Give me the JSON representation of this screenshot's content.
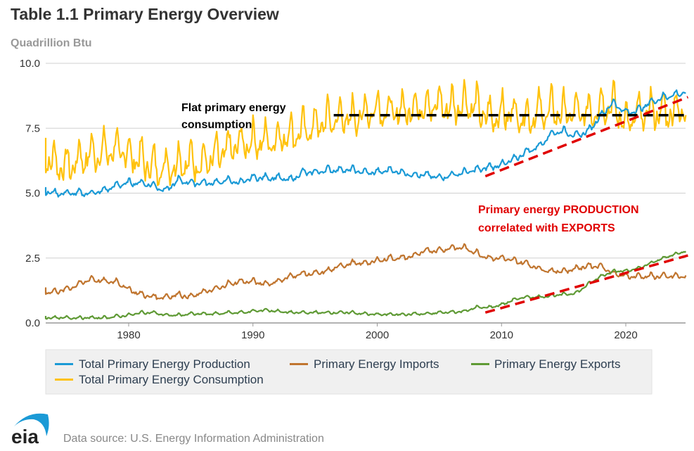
{
  "chart_data": {
    "type": "line",
    "title": "Table 1.1 Primary Energy Overview",
    "ylabel": "Quadrillion Btu",
    "xlabel": "",
    "ylim": [
      0,
      10
    ],
    "xlim": [
      1973,
      2024.9
    ],
    "yticks": [
      "0.0",
      "2.5",
      "5.0",
      "7.5",
      "10.0"
    ],
    "ytick_values": [
      0,
      2.5,
      5,
      7.5,
      10
    ],
    "xticks": [
      "1980",
      "1990",
      "2000",
      "2010",
      "2020"
    ],
    "xtick_values": [
      1980,
      1990,
      2000,
      2010,
      2020
    ],
    "grid": "horizontal",
    "legend_position": "bottom",
    "x": [
      1973,
      1974,
      1975,
      1976,
      1977,
      1978,
      1979,
      1980,
      1981,
      1982,
      1983,
      1984,
      1985,
      1986,
      1987,
      1988,
      1989,
      1990,
      1991,
      1992,
      1993,
      1994,
      1995,
      1996,
      1997,
      1998,
      1999,
      2000,
      2001,
      2002,
      2003,
      2004,
      2005,
      2006,
      2007,
      2008,
      2009,
      2010,
      2011,
      2012,
      2013,
      2014,
      2015,
      2016,
      2017,
      2018,
      2019,
      2020,
      2021,
      2022,
      2023,
      2024
    ],
    "series": [
      {
        "name": "Total Primary Energy Production",
        "color": "#1b9ad6",
        "seasonal_amplitude": 0.12,
        "values": [
          5.1,
          5.0,
          5.0,
          5.0,
          5.0,
          5.1,
          5.3,
          5.4,
          5.4,
          5.3,
          5.1,
          5.5,
          5.4,
          5.4,
          5.4,
          5.5,
          5.4,
          5.6,
          5.6,
          5.6,
          5.5,
          5.8,
          5.8,
          5.9,
          5.9,
          5.9,
          5.8,
          5.8,
          5.9,
          5.8,
          5.7,
          5.7,
          5.6,
          5.7,
          5.8,
          5.9,
          6.0,
          6.1,
          6.3,
          6.6,
          6.8,
          7.3,
          7.4,
          7.2,
          7.4,
          8.0,
          8.5,
          8.1,
          8.2,
          8.5,
          8.7,
          8.8
        ]
      },
      {
        "name": "Primary Energy Imports",
        "color": "#c0752f",
        "seasonal_amplitude": 0.1,
        "values": [
          1.2,
          1.2,
          1.3,
          1.5,
          1.7,
          1.6,
          1.6,
          1.3,
          1.1,
          1.0,
          1.0,
          1.1,
          1.0,
          1.2,
          1.3,
          1.5,
          1.6,
          1.6,
          1.5,
          1.6,
          1.8,
          1.9,
          1.9,
          2.0,
          2.2,
          2.3,
          2.3,
          2.4,
          2.5,
          2.5,
          2.6,
          2.8,
          2.8,
          2.9,
          2.9,
          2.7,
          2.5,
          2.5,
          2.4,
          2.3,
          2.1,
          2.0,
          2.0,
          2.1,
          2.2,
          2.2,
          1.9,
          1.8,
          1.8,
          1.8,
          1.8,
          1.8
        ]
      },
      {
        "name": "Primary Energy Exports",
        "color": "#5f9a35",
        "seasonal_amplitude": 0.05,
        "values": [
          0.2,
          0.2,
          0.2,
          0.2,
          0.2,
          0.2,
          0.25,
          0.3,
          0.4,
          0.4,
          0.3,
          0.3,
          0.35,
          0.35,
          0.35,
          0.4,
          0.4,
          0.45,
          0.5,
          0.45,
          0.4,
          0.4,
          0.4,
          0.4,
          0.4,
          0.4,
          0.35,
          0.33,
          0.33,
          0.33,
          0.35,
          0.35,
          0.4,
          0.42,
          0.45,
          0.6,
          0.6,
          0.7,
          0.9,
          1.0,
          1.0,
          1.05,
          1.1,
          1.15,
          1.5,
          1.8,
          2.0,
          2.0,
          2.1,
          2.3,
          2.5,
          2.65
        ]
      },
      {
        "name": "Total Primary Energy Consumption",
        "color": "#ffc20e",
        "seasonal_amplitude": 0.65,
        "values": [
          6.4,
          6.2,
          6.0,
          6.3,
          6.5,
          6.6,
          6.7,
          6.5,
          6.3,
          6.0,
          6.0,
          6.2,
          6.2,
          6.2,
          6.4,
          6.7,
          6.9,
          7.0,
          7.0,
          7.1,
          7.3,
          7.4,
          7.6,
          7.8,
          7.9,
          7.9,
          8.1,
          8.3,
          8.1,
          8.2,
          8.3,
          8.4,
          8.4,
          8.3,
          8.5,
          8.3,
          7.9,
          8.1,
          8.1,
          7.9,
          8.1,
          8.2,
          8.1,
          8.1,
          8.1,
          8.4,
          8.4,
          7.7,
          8.0,
          8.2,
          8.1,
          8.2
        ]
      }
    ],
    "annotations": [
      {
        "text_lines": [
          "Flat primary energy",
          "consumption"
        ],
        "color": "#000000",
        "trendline": {
          "from": [
            1996.5,
            8.0
          ],
          "to": [
            2025,
            8.0
          ]
        }
      },
      {
        "text_lines": [
          "Primary energy PRODUCTION",
          "correlated with EXPORTS"
        ],
        "color": "#e00000",
        "trendlines": [
          {
            "from": [
              2008.7,
              5.65
            ],
            "to": [
              2025,
              8.7
            ]
          },
          {
            "from": [
              2008.7,
              0.4
            ],
            "to": [
              2025,
              2.6
            ]
          }
        ]
      }
    ]
  },
  "footer": {
    "logo_text": "eia",
    "source": "Data source: U.S. Energy Information Administration"
  }
}
